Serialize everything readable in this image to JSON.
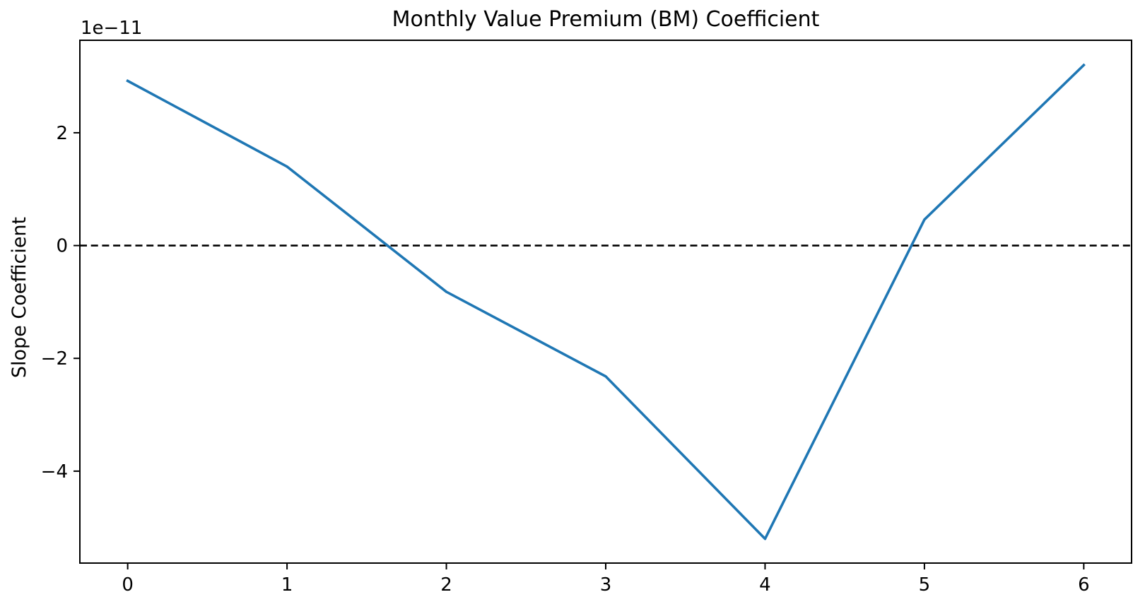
{
  "figure": {
    "background": "#ffffff",
    "text_color": "#000000"
  },
  "chart_data": {
    "type": "line",
    "title": "Monthly Value Premium (BM) Coefficient",
    "xlabel": "",
    "ylabel": "Slope Coefficient",
    "y_offset_text": "1e−11",
    "x": [
      0,
      1,
      2,
      3,
      4,
      5,
      6
    ],
    "series": [
      {
        "name": "monthly-bm-slope-coefficient",
        "values": [
          2.92e-11,
          1.4e-11,
          -8.2e-12,
          -2.32e-11,
          -5.2e-11,
          4.6e-12,
          3.2e-11
        ],
        "color": "#1f77b4",
        "line_width": 3.6
      }
    ],
    "x_ticks": [
      {
        "value": 0,
        "label": "0"
      },
      {
        "value": 1,
        "label": "1"
      },
      {
        "value": 2,
        "label": "2"
      },
      {
        "value": 3,
        "label": "3"
      },
      {
        "value": 4,
        "label": "4"
      },
      {
        "value": 5,
        "label": "5"
      },
      {
        "value": 6,
        "label": "6"
      }
    ],
    "y_ticks": [
      {
        "value": -4e-11,
        "label": "−4"
      },
      {
        "value": -2e-11,
        "label": "−2"
      },
      {
        "value": 0,
        "label": "0"
      },
      {
        "value": 2e-11,
        "label": "2"
      }
    ],
    "xlim": [
      -0.3,
      6.3
    ],
    "ylim": [
      -5.63e-11,
      3.64e-11
    ],
    "reference_line": {
      "y": 0,
      "color": "#000000",
      "style": "dashed",
      "dash": "10 5.7",
      "width": 2.7
    },
    "grid": false,
    "legend": "none",
    "spine_color": "#000000"
  }
}
